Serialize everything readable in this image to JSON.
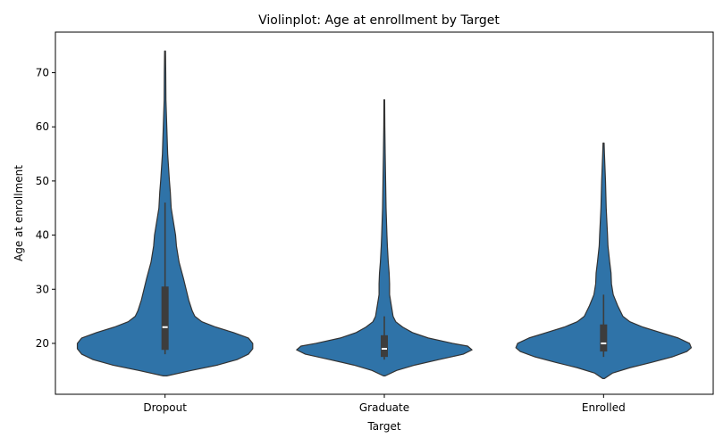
{
  "chart_data": {
    "type": "violin",
    "title": "Violinplot: Age at enrollment by Target",
    "xlabel": "Target",
    "ylabel": "Age at enrollment",
    "categories": [
      "Dropout",
      "Graduate",
      "Enrolled"
    ],
    "yticks": [
      20,
      30,
      40,
      50,
      60,
      70
    ],
    "ylim": [
      10.6,
      77.5
    ],
    "grid": false,
    "fill_color": "#2f73a8",
    "box_color": "#3d3d3d",
    "median_color": "#ffffff",
    "violins": [
      {
        "category": "Dropout",
        "min": 14,
        "max": 74,
        "q1": 18.8,
        "median": 23,
        "q3": 30.5,
        "whisker_low": 18,
        "whisker_high": 46,
        "density": [
          [
            14,
            0.02
          ],
          [
            15,
            0.3
          ],
          [
            16,
            0.6
          ],
          [
            17,
            0.82
          ],
          [
            18,
            0.95
          ],
          [
            19,
            1.0
          ],
          [
            20,
            1.0
          ],
          [
            21,
            0.95
          ],
          [
            22,
            0.78
          ],
          [
            23,
            0.58
          ],
          [
            24,
            0.42
          ],
          [
            25,
            0.34
          ],
          [
            26,
            0.31
          ],
          [
            28,
            0.27
          ],
          [
            30,
            0.24
          ],
          [
            32,
            0.21
          ],
          [
            35,
            0.16
          ],
          [
            38,
            0.13
          ],
          [
            40,
            0.12
          ],
          [
            42,
            0.1
          ],
          [
            45,
            0.07
          ],
          [
            48,
            0.06
          ],
          [
            50,
            0.05
          ],
          [
            55,
            0.03
          ],
          [
            60,
            0.02
          ],
          [
            65,
            0.01
          ],
          [
            70,
            0.008
          ],
          [
            74,
            0.005
          ]
        ]
      },
      {
        "category": "Graduate",
        "min": 14,
        "max": 65,
        "q1": 17.5,
        "median": 19,
        "q3": 21.5,
        "whisker_low": 17,
        "whisker_high": 25,
        "density": [
          [
            14,
            0.01
          ],
          [
            15,
            0.14
          ],
          [
            16,
            0.35
          ],
          [
            17,
            0.62
          ],
          [
            18,
            0.9
          ],
          [
            18.8,
            1.0
          ],
          [
            19.5,
            0.95
          ],
          [
            20,
            0.78
          ],
          [
            21,
            0.5
          ],
          [
            22,
            0.32
          ],
          [
            23,
            0.21
          ],
          [
            24,
            0.13
          ],
          [
            25,
            0.1
          ],
          [
            27,
            0.08
          ],
          [
            29,
            0.06
          ],
          [
            31,
            0.06
          ],
          [
            33,
            0.055
          ],
          [
            35,
            0.045
          ],
          [
            38,
            0.035
          ],
          [
            40,
            0.03
          ],
          [
            45,
            0.02
          ],
          [
            50,
            0.015
          ],
          [
            55,
            0.01
          ],
          [
            60,
            0.006
          ],
          [
            65,
            0.004
          ]
        ]
      },
      {
        "category": "Enrolled",
        "min": 13.5,
        "max": 57,
        "q1": 18.5,
        "median": 20,
        "q3": 23.5,
        "whisker_low": 17.5,
        "whisker_high": 29,
        "density": [
          [
            13.5,
            0.01
          ],
          [
            14.5,
            0.1
          ],
          [
            15.5,
            0.3
          ],
          [
            16.5,
            0.55
          ],
          [
            17.5,
            0.78
          ],
          [
            18.5,
            0.95
          ],
          [
            19.2,
            1.0
          ],
          [
            20,
            0.98
          ],
          [
            21,
            0.85
          ],
          [
            22,
            0.65
          ],
          [
            23,
            0.45
          ],
          [
            24,
            0.3
          ],
          [
            25,
            0.22
          ],
          [
            27,
            0.16
          ],
          [
            29,
            0.11
          ],
          [
            31,
            0.09
          ],
          [
            33,
            0.085
          ],
          [
            35,
            0.07
          ],
          [
            38,
            0.05
          ],
          [
            40,
            0.045
          ],
          [
            45,
            0.03
          ],
          [
            50,
            0.022
          ],
          [
            55,
            0.01
          ],
          [
            57,
            0.006
          ]
        ]
      }
    ]
  }
}
